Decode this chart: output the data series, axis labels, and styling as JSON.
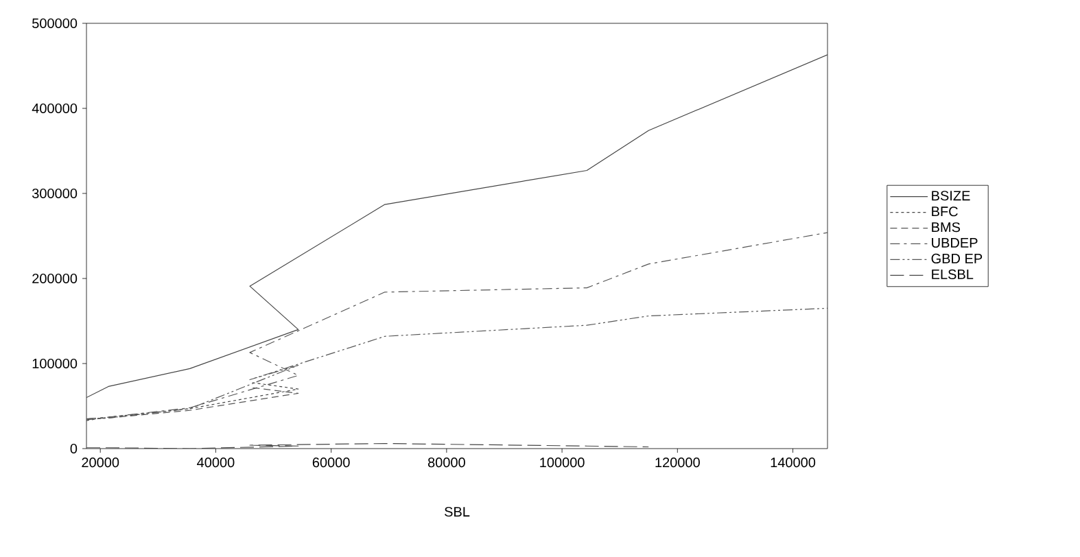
{
  "chart_data": {
    "type": "line",
    "xlabel": "SBL",
    "x": [
      17600,
      21400,
      35500,
      54300,
      45900,
      69300,
      104300,
      115000,
      146000
    ],
    "xlim": [
      17600,
      146000
    ],
    "ylim": [
      0,
      500000
    ],
    "xticks": [
      20000,
      40000,
      60000,
      80000,
      100000,
      120000,
      140000
    ],
    "yticks": [
      0,
      100000,
      200000,
      300000,
      400000,
      500000
    ],
    "grid": false,
    "legend": "right",
    "series": [
      {
        "name": "BSIZE",
        "color": "#444444",
        "line_style": "solid",
        "values": [
          60000,
          73000,
          94000,
          140000,
          191000,
          287000,
          327000,
          374000,
          463000
        ]
      },
      {
        "name": "BFC",
        "color": "#444444",
        "line_style": "dotted",
        "values": [
          33000,
          37000,
          47000,
          70000,
          78000,
          null,
          null,
          null,
          null
        ]
      },
      {
        "name": "BMS",
        "color": "#555555",
        "line_style": "dashed",
        "values": [
          35000,
          36000,
          45000,
          65000,
          72000,
          null,
          null,
          null,
          null
        ]
      },
      {
        "name": "UBDEP",
        "color": "#555555",
        "line_style": "dashdot",
        "values": [
          35000,
          37000,
          48000,
          86000,
          113000,
          184000,
          189000,
          217000,
          254000
        ]
      },
      {
        "name": "GBD EP",
        "color": "#555555",
        "line_style": "dashdotdot",
        "values": [
          34000,
          36000,
          47000,
          98000,
          81000,
          132000,
          145000,
          156000,
          165000
        ]
      },
      {
        "name": "ELSBL",
        "color": "#444444",
        "line_style": "longdash",
        "values": [
          1000,
          1000,
          0,
          3000,
          4000,
          6000,
          3000,
          2000,
          null
        ]
      }
    ]
  }
}
